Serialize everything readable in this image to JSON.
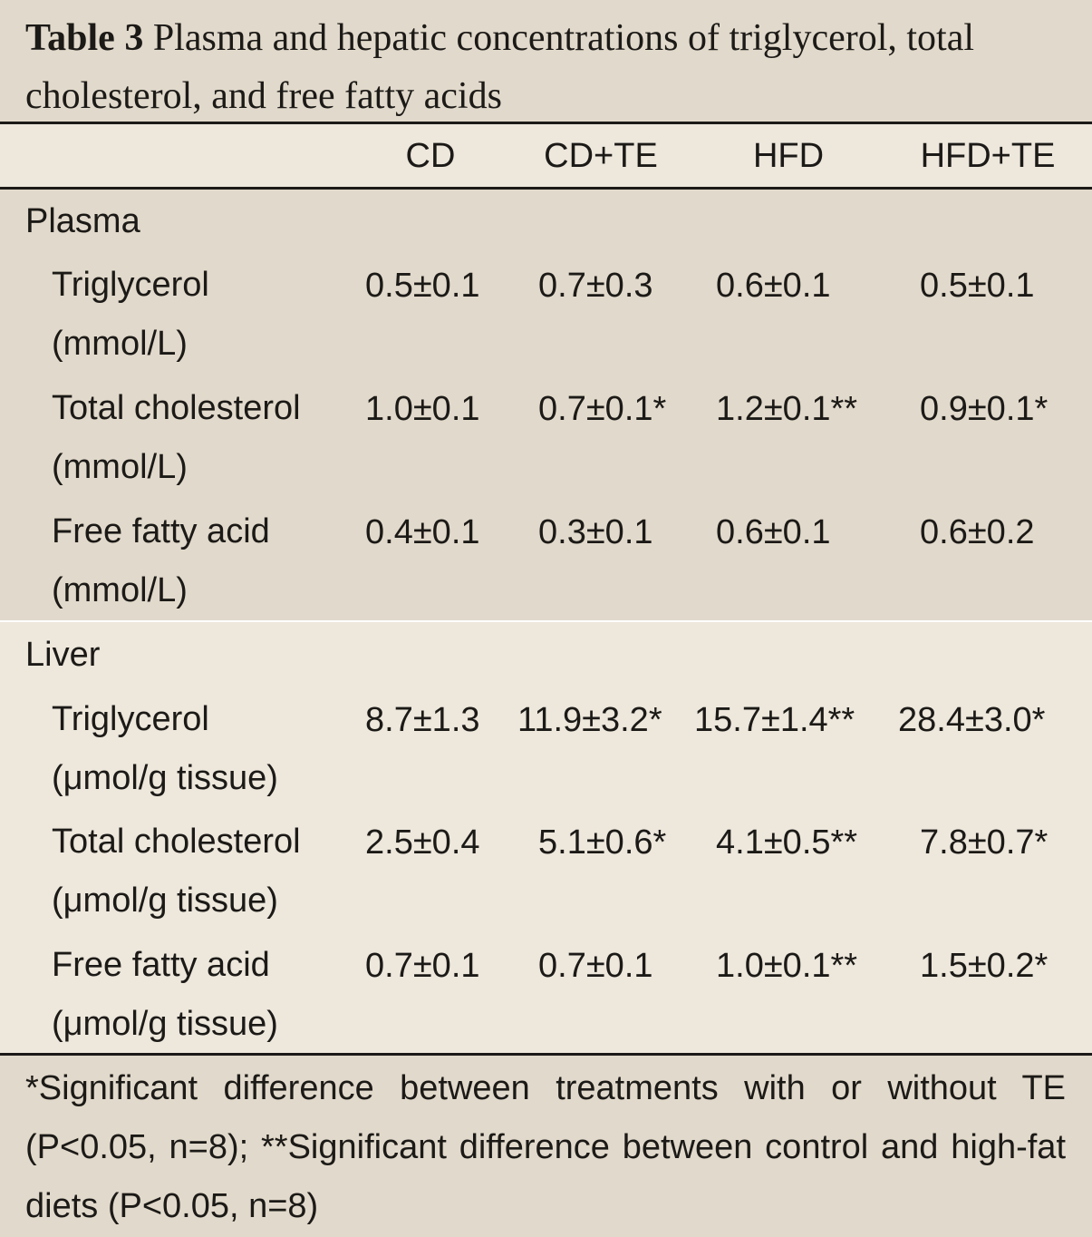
{
  "table": {
    "caption_label": "Table 3",
    "caption_text": "Plasma and hepatic concentrations of triglycerol, total cholesterol, and free fatty acids",
    "columns": [
      "CD",
      "CD+TE",
      "HFD",
      "HFD+TE"
    ],
    "sections": [
      {
        "name": "Plasma",
        "rows": [
          {
            "label": "Triglycerol",
            "unit": "(mmol/L)",
            "values": [
              "0.5±0.1",
              "0.7±0.3",
              "0.6±0.1",
              "0.5±0.1"
            ]
          },
          {
            "label": "Total cholesterol",
            "unit": "(mmol/L)",
            "values": [
              "1.0±0.1",
              "0.7±0.1*",
              "1.2±0.1**",
              "0.9±0.1*"
            ]
          },
          {
            "label": "Free fatty acid",
            "unit": "(mmol/L)",
            "values": [
              "0.4±0.1",
              "0.3±0.1",
              "0.6±0.1",
              "0.6±0.2"
            ]
          }
        ]
      },
      {
        "name": "Liver",
        "rows": [
          {
            "label": "Triglycerol",
            "unit": "(μmol/g tissue)",
            "values": [
              "8.7±1.3",
              "11.9±3.2*",
              "15.7±1.4**",
              "28.4±3.0*"
            ]
          },
          {
            "label": "Total cholesterol",
            "unit": "(μmol/g tissue)",
            "values": [
              "2.5±0.4",
              "5.1±0.6*",
              "4.1±0.5**",
              "7.8±0.7*"
            ]
          },
          {
            "label": "Free fatty acid",
            "unit": "(μmol/g tissue)",
            "values": [
              "0.7±0.1",
              "0.7±0.1",
              "1.0±0.1**",
              "1.5±0.2*"
            ]
          }
        ]
      }
    ],
    "footnote": "*Significant difference between treatments with or without TE (P<0.05, n=8); **Significant difference between control and high-fat diets (P<0.05, n=8)"
  }
}
